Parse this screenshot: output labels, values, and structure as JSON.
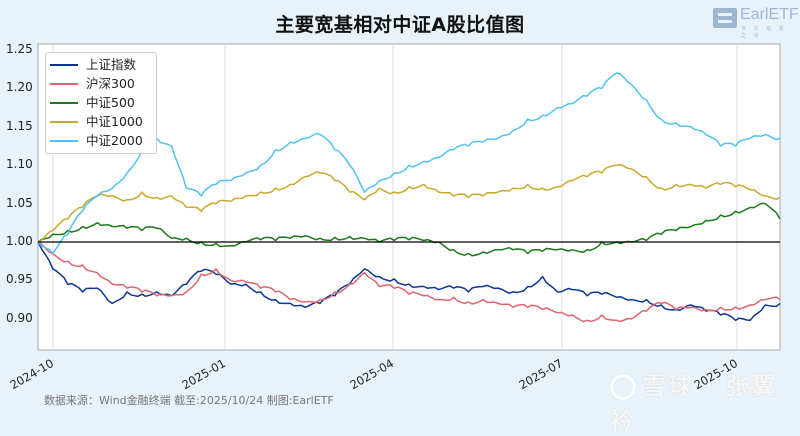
{
  "header": {
    "title": "主要宽基相对中证A股比值图",
    "logo_text": "EarlETF",
    "logo_subtext": "专 注 指 数 之 道"
  },
  "footer": {
    "source": "数据来源：Wind金融终端 截至:2025/10/24 制图:EarlETF"
  },
  "watermark": {
    "text": "雪球 · 张翼衿"
  },
  "chart_data": {
    "type": "line",
    "title": "主要宽基相对中证A股比值图",
    "xlabel": "",
    "ylabel": "",
    "ylim": [
      0.865,
      1.26
    ],
    "xlim": [
      "2024-09-24",
      "2025-10-24"
    ],
    "grid": "vertical only",
    "legend_position": "upper left",
    "reference_line": {
      "y": 1.0,
      "color": "#000000"
    },
    "yticks": [
      "1.25",
      "1.20",
      "1.15",
      "1.10",
      "1.05",
      "1.00",
      "0.95",
      "0.90"
    ],
    "xticks": [
      "2024-10",
      "2025-01",
      "2025-04",
      "2025-07",
      "2025-10"
    ],
    "x": [
      0,
      0.02,
      0.04,
      0.06,
      0.08,
      0.1,
      0.12,
      0.14,
      0.16,
      0.18,
      0.2,
      0.22,
      0.24,
      0.26,
      0.28,
      0.3,
      0.32,
      0.34,
      0.36,
      0.38,
      0.4,
      0.42,
      0.44,
      0.46,
      0.48,
      0.5,
      0.52,
      0.54,
      0.56,
      0.58,
      0.6,
      0.62,
      0.64,
      0.66,
      0.68,
      0.7,
      0.72,
      0.74,
      0.76,
      0.78,
      0.8,
      0.82,
      0.84,
      0.86,
      0.88,
      0.9,
      0.92,
      0.94,
      0.96,
      0.98,
      1.0
    ],
    "series": [
      {
        "name": "上证指数",
        "color": "#0b3694",
        "values": [
          1.0,
          0.965,
          0.945,
          0.935,
          0.94,
          0.92,
          0.935,
          0.932,
          0.935,
          0.93,
          0.945,
          0.962,
          0.958,
          0.945,
          0.945,
          0.935,
          0.925,
          0.92,
          0.915,
          0.92,
          0.93,
          0.945,
          0.965,
          0.955,
          0.952,
          0.945,
          0.942,
          0.938,
          0.94,
          0.935,
          0.942,
          0.94,
          0.935,
          0.942,
          0.955,
          0.935,
          0.938,
          0.93,
          0.932,
          0.928,
          0.925,
          0.925,
          0.918,
          0.912,
          0.918,
          0.91,
          0.905,
          0.898,
          0.898,
          0.918,
          0.92
        ]
      },
      {
        "name": "沪深300",
        "color": "#e06470",
        "values": [
          1.0,
          0.985,
          0.975,
          0.97,
          0.96,
          0.945,
          0.94,
          0.935,
          0.93,
          0.93,
          0.935,
          0.958,
          0.965,
          0.95,
          0.948,
          0.94,
          0.935,
          0.925,
          0.922,
          0.925,
          0.935,
          0.945,
          0.96,
          0.942,
          0.94,
          0.932,
          0.93,
          0.925,
          0.928,
          0.922,
          0.925,
          0.92,
          0.915,
          0.915,
          0.912,
          0.908,
          0.905,
          0.898,
          0.905,
          0.898,
          0.9,
          0.91,
          0.92,
          0.912,
          0.915,
          0.912,
          0.915,
          0.915,
          0.918,
          0.925,
          0.925
        ]
      },
      {
        "name": "中证500",
        "color": "#1a7a1a",
        "values": [
          1.0,
          1.01,
          1.015,
          1.02,
          1.025,
          1.02,
          1.018,
          1.015,
          1.018,
          1.005,
          1.005,
          1.0,
          0.998,
          0.995,
          1.0,
          1.003,
          1.002,
          1.005,
          1.008,
          1.005,
          1.006,
          1.007,
          1.005,
          1.0,
          1.002,
          1.003,
          1.002,
          1.0,
          0.99,
          0.985,
          0.987,
          0.99,
          0.99,
          0.985,
          0.988,
          0.99,
          0.99,
          0.99,
          1.0,
          1.0,
          1.0,
          1.002,
          1.01,
          1.015,
          1.02,
          1.028,
          1.035,
          1.04,
          1.045,
          1.05,
          1.03
        ]
      },
      {
        "name": "中证1000",
        "color": "#c9a92a",
        "values": [
          1.0,
          1.015,
          1.03,
          1.045,
          1.06,
          1.06,
          1.055,
          1.065,
          1.058,
          1.06,
          1.045,
          1.04,
          1.05,
          1.053,
          1.06,
          1.065,
          1.07,
          1.075,
          1.085,
          1.09,
          1.08,
          1.065,
          1.055,
          1.07,
          1.065,
          1.072,
          1.075,
          1.065,
          1.06,
          1.058,
          1.06,
          1.065,
          1.07,
          1.075,
          1.07,
          1.072,
          1.08,
          1.085,
          1.09,
          1.1,
          1.095,
          1.085,
          1.07,
          1.075,
          1.075,
          1.07,
          1.075,
          1.072,
          1.068,
          1.06,
          1.058
        ]
      },
      {
        "name": "中证2000",
        "color": "#4fc3f0",
        "values": [
          1.0,
          0.985,
          1.01,
          1.04,
          1.06,
          1.07,
          1.09,
          1.12,
          1.135,
          1.125,
          1.07,
          1.06,
          1.075,
          1.08,
          1.09,
          1.1,
          1.12,
          1.13,
          1.135,
          1.14,
          1.12,
          1.1,
          1.065,
          1.08,
          1.09,
          1.1,
          1.105,
          1.11,
          1.12,
          1.125,
          1.13,
          1.135,
          1.145,
          1.16,
          1.165,
          1.175,
          1.18,
          1.19,
          1.2,
          1.22,
          1.205,
          1.185,
          1.16,
          1.155,
          1.15,
          1.14,
          1.125,
          1.125,
          1.135,
          1.14,
          1.135
        ]
      }
    ]
  }
}
